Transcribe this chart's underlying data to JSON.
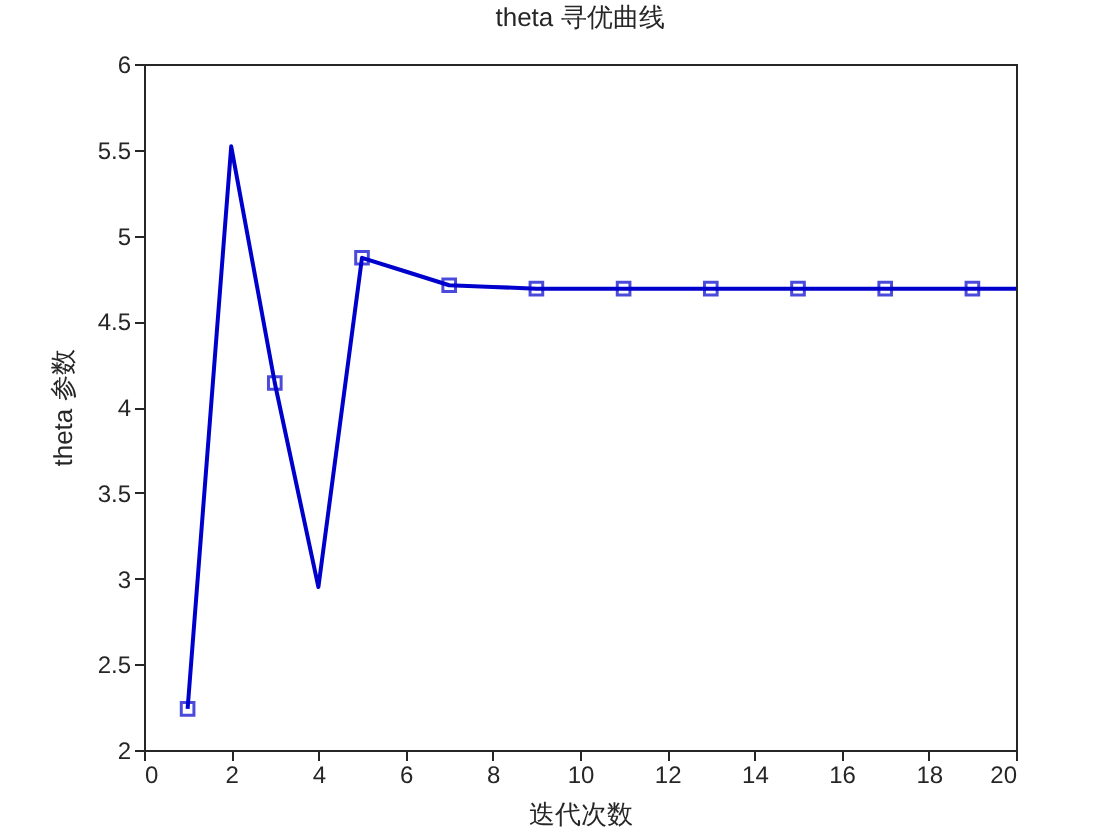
{
  "chart_data": {
    "type": "line",
    "title": "theta 寻优曲线",
    "xlabel": "迭代次数",
    "ylabel": "theta 参数",
    "xlim": [
      0,
      20
    ],
    "xticks": [
      0,
      2,
      4,
      6,
      8,
      10,
      12,
      14,
      16,
      18,
      20
    ],
    "ylim": [
      2,
      6
    ],
    "yticks": [
      2,
      2.5,
      3,
      3.5,
      4,
      4.5,
      5,
      5.5,
      6
    ],
    "grid": false,
    "series": [
      {
        "color": "#0000cc",
        "marker": "none",
        "line_style": "solid",
        "x": [
          1,
          2,
          3,
          4,
          5,
          6,
          7,
          8,
          9,
          10,
          11,
          12,
          13,
          14,
          15,
          16,
          17,
          18,
          19,
          20
        ],
        "values": [
          2.24,
          5.52,
          4.14,
          2.95,
          4.87,
          4.79,
          4.71,
          4.7,
          4.69,
          4.69,
          4.69,
          4.69,
          4.69,
          4.69,
          4.69,
          4.69,
          4.69,
          4.69,
          4.69,
          4.69
        ]
      },
      {
        "type": "scatter",
        "color": "#0000cc",
        "marker": "square",
        "x": [
          1,
          3,
          5,
          7,
          9,
          11,
          13,
          15,
          17,
          19
        ],
        "values": [
          2.24,
          4.14,
          4.87,
          4.71,
          4.69,
          4.69,
          4.69,
          4.69,
          4.69,
          4.69
        ]
      }
    ]
  }
}
